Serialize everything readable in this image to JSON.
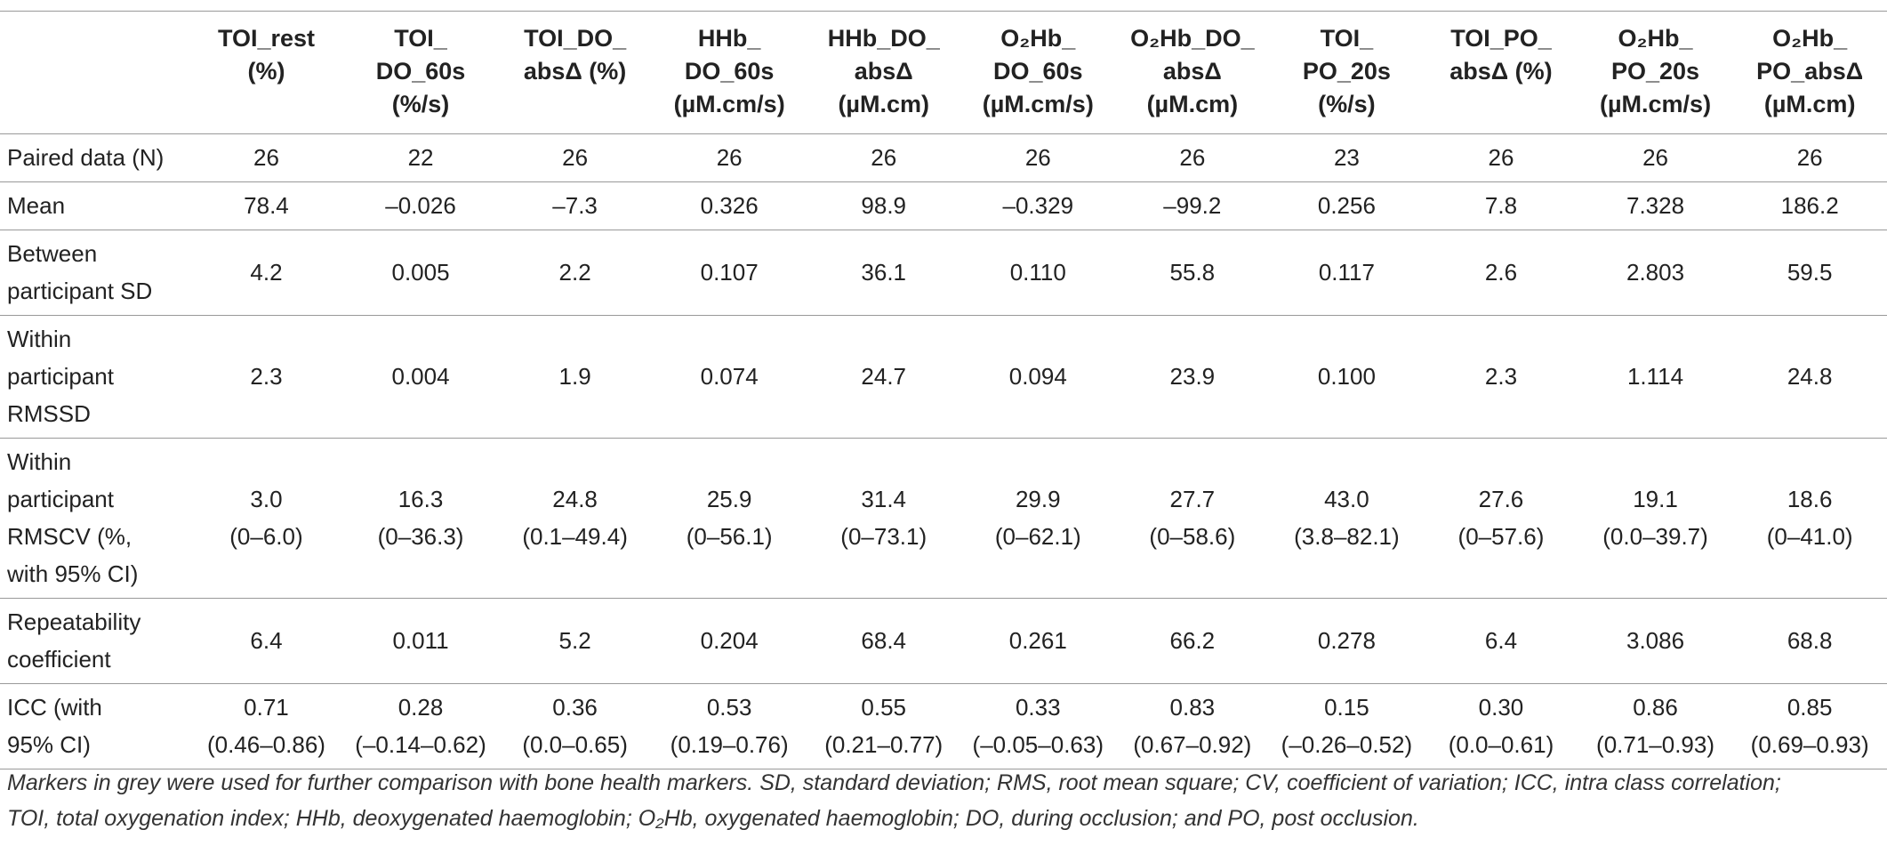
{
  "header": {
    "corner": "",
    "columns": [
      [
        "TOI_rest",
        "(%)"
      ],
      [
        "TOI_",
        "DO_60s",
        "(%/s)"
      ],
      [
        "TOI_DO_",
        "absΔ (%)"
      ],
      [
        "HHb_",
        "DO_60s",
        "(µM.cm/s)"
      ],
      [
        "HHb_DO_",
        "absΔ",
        "(µM.cm)"
      ],
      [
        "O₂Hb_",
        "DO_60s",
        "(µM.cm/s)"
      ],
      [
        "O₂Hb_DO_",
        "absΔ",
        "(µM.cm)"
      ],
      [
        "TOI_",
        "PO_20s",
        "(%/s)"
      ],
      [
        "TOI_PO_",
        "absΔ (%)"
      ],
      [
        "O₂Hb_",
        "PO_20s",
        "(µM.cm/s)"
      ],
      [
        "O₂Hb_",
        "PO_absΔ",
        "(µM.cm)"
      ]
    ]
  },
  "rows": [
    {
      "label": [
        "Paired data (N)"
      ],
      "cells": [
        [
          "26"
        ],
        [
          "22"
        ],
        [
          "26"
        ],
        [
          "26"
        ],
        [
          "26"
        ],
        [
          "26"
        ],
        [
          "26"
        ],
        [
          "23"
        ],
        [
          "26"
        ],
        [
          "26"
        ],
        [
          "26"
        ]
      ]
    },
    {
      "label": [
        "Mean"
      ],
      "cells": [
        [
          "78.4"
        ],
        [
          "–0.026"
        ],
        [
          "–7.3"
        ],
        [
          "0.326"
        ],
        [
          "98.9"
        ],
        [
          "–0.329"
        ],
        [
          "–99.2"
        ],
        [
          "0.256"
        ],
        [
          "7.8"
        ],
        [
          "7.328"
        ],
        [
          "186.2"
        ]
      ]
    },
    {
      "label": [
        "Between",
        "participant SD"
      ],
      "cells": [
        [
          "4.2"
        ],
        [
          "0.005"
        ],
        [
          "2.2"
        ],
        [
          "0.107"
        ],
        [
          "36.1"
        ],
        [
          "0.110"
        ],
        [
          "55.8"
        ],
        [
          "0.117"
        ],
        [
          "2.6"
        ],
        [
          "2.803"
        ],
        [
          "59.5"
        ]
      ]
    },
    {
      "label": [
        "Within",
        "participant",
        "RMSSD"
      ],
      "cells": [
        [
          "2.3"
        ],
        [
          "0.004"
        ],
        [
          "1.9"
        ],
        [
          "0.074"
        ],
        [
          "24.7"
        ],
        [
          "0.094"
        ],
        [
          "23.9"
        ],
        [
          "0.100"
        ],
        [
          "2.3"
        ],
        [
          "1.114"
        ],
        [
          "24.8"
        ]
      ]
    },
    {
      "label": [
        "Within",
        "participant",
        "RMSCV (%,",
        "with 95% CI)"
      ],
      "cells": [
        [
          "3.0",
          "(0–6.0)"
        ],
        [
          "16.3",
          "(0–36.3)"
        ],
        [
          "24.8",
          "(0.1–49.4)"
        ],
        [
          "25.9",
          "(0–56.1)"
        ],
        [
          "31.4",
          "(0–73.1)"
        ],
        [
          "29.9",
          "(0–62.1)"
        ],
        [
          "27.7",
          "(0–58.6)"
        ],
        [
          "43.0",
          "(3.8–82.1)"
        ],
        [
          "27.6",
          "(0–57.6)"
        ],
        [
          "19.1",
          "(0.0–39.7)"
        ],
        [
          "18.6",
          "(0–41.0)"
        ]
      ]
    },
    {
      "label": [
        "Repeatability",
        "coefficient"
      ],
      "cells": [
        [
          "6.4"
        ],
        [
          "0.011"
        ],
        [
          "5.2"
        ],
        [
          "0.204"
        ],
        [
          "68.4"
        ],
        [
          "0.261"
        ],
        [
          "66.2"
        ],
        [
          "0.278"
        ],
        [
          "6.4"
        ],
        [
          "3.086"
        ],
        [
          "68.8"
        ]
      ]
    },
    {
      "label": [
        "ICC (with",
        "95% CI)"
      ],
      "cells": [
        [
          "0.71",
          "(0.46–0.86)"
        ],
        [
          "0.28",
          "(–0.14–0.62)"
        ],
        [
          "0.36",
          "(0.0–0.65)"
        ],
        [
          "0.53",
          "(0.19–0.76)"
        ],
        [
          "0.55",
          "(0.21–0.77)"
        ],
        [
          "0.33",
          "(–0.05–0.63)"
        ],
        [
          "0.83",
          "(0.67–0.92)"
        ],
        [
          "0.15",
          "(–0.26–0.52)"
        ],
        [
          "0.30",
          "(0.0–0.61)"
        ],
        [
          "0.86",
          "(0.71–0.93)"
        ],
        [
          "0.85",
          "(0.69–0.93)"
        ]
      ]
    }
  ],
  "footnote": {
    "line1": "Markers in grey were used for further comparison with bone health markers. SD, standard deviation; RMS, root mean square; CV, coefficient of variation; ICC, intra class correlation;",
    "line2": "TOI, total oxygenation index; HHb, deoxygenated haemoglobin; O₂Hb, oxygenated haemoglobin; DO, during occlusion; and PO, post occlusion."
  }
}
